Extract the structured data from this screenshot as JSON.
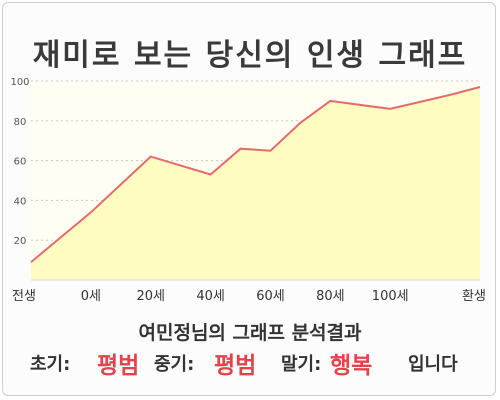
{
  "header": {
    "title": "재미로 보는 당신의 인생 그래프"
  },
  "chart_data": {
    "type": "area",
    "x": [
      -1,
      0,
      1,
      2,
      2.5,
      3,
      3.5,
      4,
      5,
      6,
      6.5
    ],
    "y": [
      9,
      34,
      62,
      53,
      66,
      65,
      79,
      90,
      86,
      93,
      97
    ],
    "xticks": [
      "전생",
      "0세",
      "20세",
      "40세",
      "60세",
      "80세",
      "100세",
      "환생"
    ],
    "yticks": [
      20,
      40,
      60,
      80,
      100
    ],
    "ylim": [
      0,
      100
    ],
    "grid": true,
    "fill_color": "#fffcc2",
    "line_color": "#e66a6a"
  },
  "footer": {
    "subtitle": "여민정님의 그래프 분석결과",
    "early_label": "초기:",
    "early_value": "평범",
    "mid_label": "중기:",
    "mid_value": "평범",
    "late_label": "말기:",
    "late_value": "행복",
    "ending": "입니다",
    "highlight_color": "#e5424d"
  }
}
